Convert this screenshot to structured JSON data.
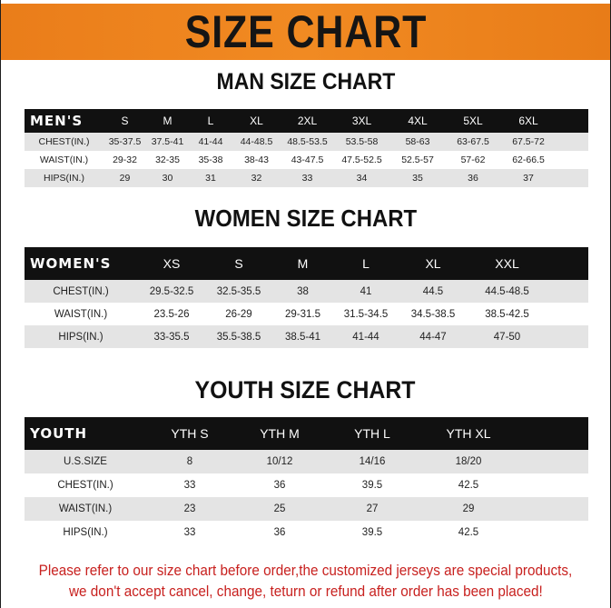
{
  "banner_title": "SIZE CHART",
  "men": {
    "title": "MAN SIZE CHART",
    "header": "MEN'S",
    "sizes": [
      "S",
      "M",
      "L",
      "XL",
      "2XL",
      "3XL",
      "4XL",
      "5XL",
      "6XL"
    ],
    "rows": [
      {
        "label": "CHEST(IN.)",
        "values": [
          "35-37.5",
          "37.5-41",
          "41-44",
          "44-48.5",
          "48.5-53.5",
          "53.5-58",
          "58-63",
          "63-67.5",
          "67.5-72"
        ]
      },
      {
        "label": "WAIST(IN.)",
        "values": [
          "29-32",
          "32-35",
          "35-38",
          "38-43",
          "43-47.5",
          "47.5-52.5",
          "52.5-57",
          "57-62",
          "62-66.5"
        ]
      },
      {
        "label": "HIPS(IN.)",
        "values": [
          "29",
          "30",
          "31",
          "32",
          "33",
          "34",
          "35",
          "36",
          "37"
        ]
      }
    ]
  },
  "women": {
    "title": "WOMEN SIZE CHART",
    "header": "WOMEN'S",
    "sizes": [
      "XS",
      "S",
      "M",
      "L",
      "XL",
      "XXL"
    ],
    "rows": [
      {
        "label": "CHEST(IN.)",
        "values": [
          "29.5-32.5",
          "32.5-35.5",
          "38",
          "41",
          "44.5",
          "44.5-48.5"
        ]
      },
      {
        "label": "WAIST(IN.)",
        "values": [
          "23.5-26",
          "26-29",
          "29-31.5",
          "31.5-34.5",
          "34.5-38.5",
          "38.5-42.5"
        ]
      },
      {
        "label": "HIPS(IN.)",
        "values": [
          "33-35.5",
          "35.5-38.5",
          "38.5-41",
          "41-44",
          "44-47",
          "47-50"
        ]
      }
    ]
  },
  "youth": {
    "title": "YOUTH SIZE CHART",
    "header": "YOUTH",
    "sizes": [
      "YTH S",
      "YTH M",
      "YTH L",
      "YTH XL"
    ],
    "rows": [
      {
        "label": "U.S.SIZE",
        "values": [
          "8",
          "10/12",
          "14/16",
          "18/20"
        ]
      },
      {
        "label": "CHEST(IN.)",
        "values": [
          "33",
          "36",
          "39.5",
          "42.5"
        ]
      },
      {
        "label": "WAIST(IN.)",
        "values": [
          "23",
          "25",
          "27",
          "29"
        ]
      },
      {
        "label": "HIPS(IN.)",
        "values": [
          "33",
          "36",
          "39.5",
          "42.5"
        ]
      }
    ]
  },
  "notice": {
    "line1": "Please refer to our size chart before order,the customized jerseys are special products,",
    "line2": "we don't accept cancel, change, teturn or refund after order has been placed!"
  },
  "colors": {
    "banner": "#f08a22",
    "header_row": "#111111",
    "stripe": "#e4e4e4",
    "notice": "#c8211f"
  }
}
